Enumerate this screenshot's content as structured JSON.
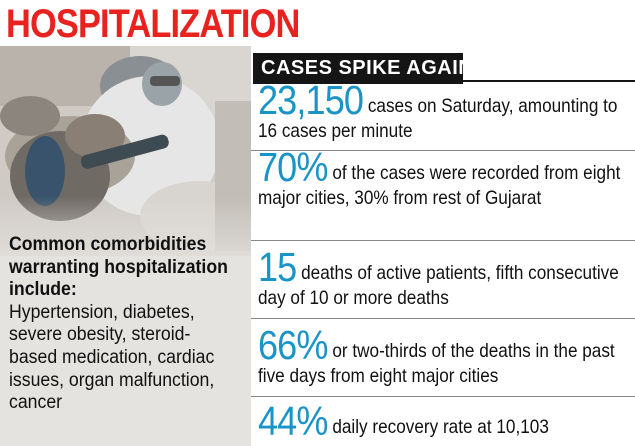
{
  "title": "HOSPITALIZATION",
  "comorbidities": {
    "heading": "Common comorbidities warranting hospitalization include:",
    "list": "Hypertension, diabetes, severe obesity, steroid-based medication, cardiac issues, organ malfunction, cancer"
  },
  "panel": {
    "header": "CASES SPIKE AGAIN",
    "stats": [
      {
        "number": "23,150",
        "text": " cases on Saturday, amounting to 16 cases per minute"
      },
      {
        "number": "70%",
        "text": " of the cases were recorded from eight major cities, 30% from rest of Gujarat"
      },
      {
        "number": "15",
        "text": " deaths of active patients, fifth consecutive day of 10 or more deaths"
      },
      {
        "number": "66%",
        "text": " or two-thirds of the deaths in the past five days from eight major cities"
      },
      {
        "number": "44%",
        "text": " daily recovery rate at 10,103"
      }
    ]
  },
  "colors": {
    "title_red": "#e8231f",
    "number_blue": "#1a93c7",
    "header_black": "#151515",
    "panel_grey": "#e5e3e0"
  }
}
